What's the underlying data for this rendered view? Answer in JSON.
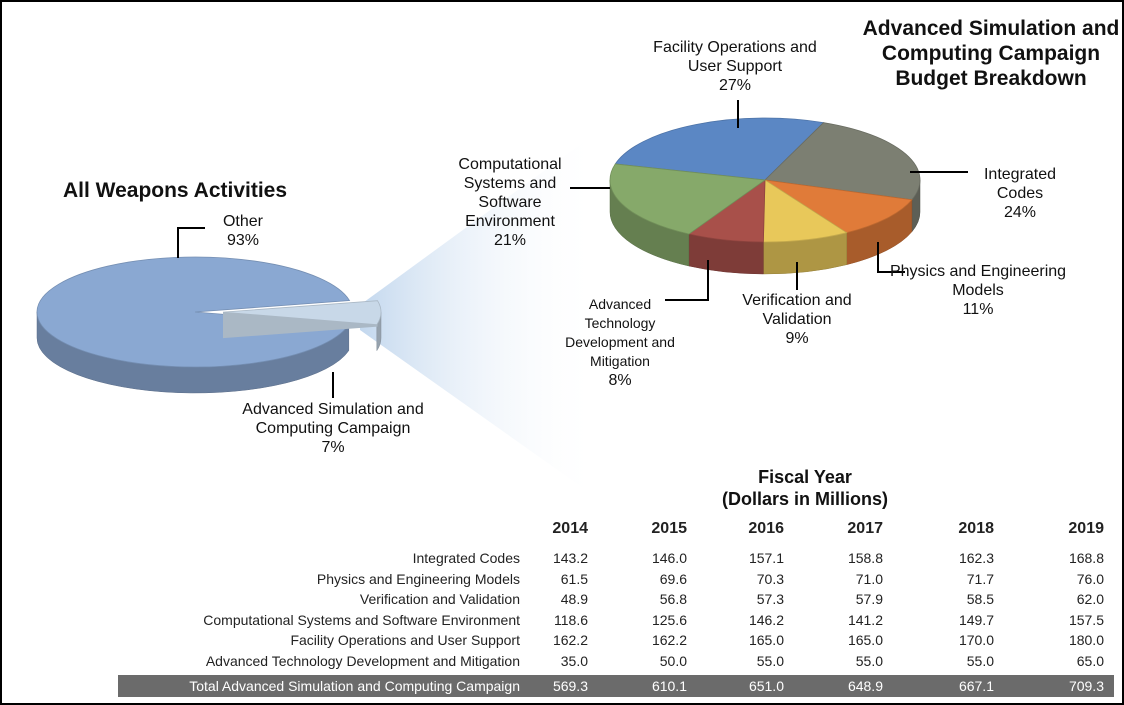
{
  "chart_data": [
    {
      "type": "pie",
      "title": "All Weapons Activities",
      "categories": [
        "Other",
        "Advanced Simulation and Computing Campaign"
      ],
      "values": [
        93,
        7
      ],
      "value_labels": [
        "93%",
        "7%"
      ],
      "colors": [
        "#8aa8d2",
        "#c8d8e8"
      ],
      "explode": [
        false,
        true
      ]
    },
    {
      "type": "pie",
      "title": "Advanced Simulation and Computing Campaign Budget Breakdown",
      "categories": [
        "Facility Operations and User Support",
        "Integrated Codes",
        "Physics and Engineering Models",
        "Verification and Validation",
        "Advanced Technology Development and Mitigation",
        "Computational Systems and Software Environment"
      ],
      "values": [
        27,
        24,
        11,
        9,
        8,
        21
      ],
      "value_labels": [
        "27%",
        "24%",
        "11%",
        "9%",
        "8%",
        "21%"
      ],
      "colors": [
        "#5b87c4",
        "#7c7f72",
        "#e07b39",
        "#e8c85a",
        "#a8504a",
        "#86a96a"
      ]
    }
  ],
  "table": {
    "title": "Fiscal Year",
    "subtitle": "(Dollars in Millions)",
    "columns": [
      2014,
      2015,
      2016,
      2017,
      2018,
      2019
    ],
    "rows": [
      {
        "label": "Integrated Codes",
        "values": [
          "143.2",
          "146.0",
          "157.1",
          "158.8",
          "162.3",
          "168.8"
        ]
      },
      {
        "label": "Physics and Engineering Models",
        "values": [
          "61.5",
          "69.6",
          "70.3",
          "71.0",
          "71.7",
          "76.0"
        ]
      },
      {
        "label": "Verification and Validation",
        "values": [
          "48.9",
          "56.8",
          "57.3",
          "57.9",
          "58.5",
          "62.0"
        ]
      },
      {
        "label": "Computational Systems and Software Environment",
        "values": [
          "118.6",
          "125.6",
          "146.2",
          "141.2",
          "149.7",
          "157.5"
        ]
      },
      {
        "label": "Facility Operations and User Support",
        "values": [
          "162.2",
          "162.2",
          "165.0",
          "165.0",
          "170.0",
          "180.0"
        ]
      },
      {
        "label": "Advanced Technology Development and Mitigation",
        "values": [
          "35.0",
          "50.0",
          "55.0",
          "55.0",
          "55.0",
          "65.0"
        ]
      }
    ],
    "total": {
      "label": "Total Advanced Simulation and Computing Campaign",
      "values": [
        "569.3",
        "610.1",
        "651.0",
        "648.9",
        "667.1",
        "709.3"
      ]
    }
  }
}
